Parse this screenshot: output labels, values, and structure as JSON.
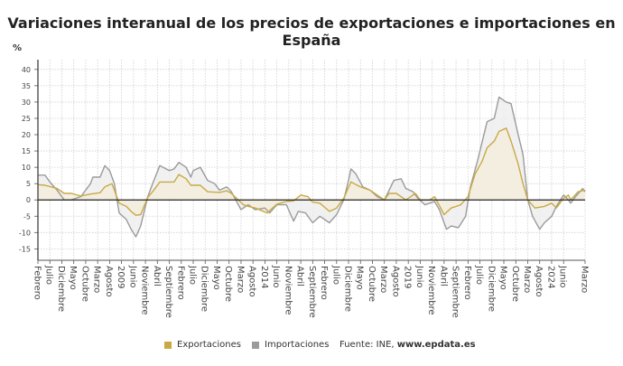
{
  "title": "Variaciones interanual de los precios de exportaciones e importaciones en España",
  "unit": "%",
  "legend": {
    "exports_label": "Exportaciones",
    "imports_label": "Importaciones",
    "source_prefix": "Fuente: INE, ",
    "source_site": "www.epdata.es"
  },
  "chart_data": {
    "type": "line",
    "title": "Variaciones interanual de los precios de exportaciones e importaciones en España",
    "ylabel": "%",
    "ylim": [
      -18.5,
      43
    ],
    "yticks": [
      40,
      35,
      30,
      25,
      20,
      15,
      10,
      5,
      0,
      -5,
      -10,
      -15
    ],
    "xrange": [
      "2006-02",
      "2025-03"
    ],
    "grid": true,
    "legend_position": "bottom",
    "xticks": [
      {
        "x": "2006-02",
        "label": "Febrero"
      },
      {
        "x": "2006-07",
        "label": "Julio"
      },
      {
        "x": "2006-12",
        "label": "Diciembre"
      },
      {
        "x": "2007-05",
        "label": "Mayo"
      },
      {
        "x": "2007-10",
        "label": "Octubre"
      },
      {
        "x": "2008-03",
        "label": "Marzo"
      },
      {
        "x": "2008-08",
        "label": "Agosto"
      },
      {
        "x": "2009-01",
        "label": "2009"
      },
      {
        "x": "2009-06",
        "label": "Junio"
      },
      {
        "x": "2009-11",
        "label": "Noviembre"
      },
      {
        "x": "2010-04",
        "label": "Abril"
      },
      {
        "x": "2010-09",
        "label": "Septiembre"
      },
      {
        "x": "2011-02",
        "label": "Febrero"
      },
      {
        "x": "2011-07",
        "label": "Julio"
      },
      {
        "x": "2011-12",
        "label": "Diciembre"
      },
      {
        "x": "2012-05",
        "label": "Mayo"
      },
      {
        "x": "2012-10",
        "label": "Octubre"
      },
      {
        "x": "2013-03",
        "label": "Marzo"
      },
      {
        "x": "2013-08",
        "label": "Agosto"
      },
      {
        "x": "2014-01",
        "label": "2014"
      },
      {
        "x": "2014-06",
        "label": "Junio"
      },
      {
        "x": "2014-11",
        "label": "Noviembre"
      },
      {
        "x": "2015-04",
        "label": "Abril"
      },
      {
        "x": "2015-09",
        "label": "Septiembre"
      },
      {
        "x": "2016-02",
        "label": "Febrero"
      },
      {
        "x": "2016-07",
        "label": "Julio"
      },
      {
        "x": "2016-12",
        "label": "Diciembre"
      },
      {
        "x": "2017-05",
        "label": "Mayo"
      },
      {
        "x": "2017-10",
        "label": "Octubre"
      },
      {
        "x": "2018-03",
        "label": "Marzo"
      },
      {
        "x": "2018-08",
        "label": "Agosto"
      },
      {
        "x": "2019-01",
        "label": "2019"
      },
      {
        "x": "2019-06",
        "label": "Junio"
      },
      {
        "x": "2019-11",
        "label": "Noviembre"
      },
      {
        "x": "2020-04",
        "label": "Abril"
      },
      {
        "x": "2020-09",
        "label": "Septiembre"
      },
      {
        "x": "2021-02",
        "label": "Febrero"
      },
      {
        "x": "2021-07",
        "label": "Julio"
      },
      {
        "x": "2021-12",
        "label": "Diciembre"
      },
      {
        "x": "2022-05",
        "label": "Mayo"
      },
      {
        "x": "2022-10",
        "label": "Octubre"
      },
      {
        "x": "2023-03",
        "label": "Marzo"
      },
      {
        "x": "2023-08",
        "label": "Agosto"
      },
      {
        "x": "2024-01",
        "label": "2024"
      },
      {
        "x": "2024-06",
        "label": "Junio"
      },
      {
        "x": "2025-03",
        "label": "Marzo"
      }
    ],
    "series": [
      {
        "name": "Importaciones",
        "color": "#9b9b9b",
        "fill": "#ededed",
        "points": [
          [
            "2006-02",
            7.6
          ],
          [
            "2006-05",
            7.6
          ],
          [
            "2006-07",
            5.5
          ],
          [
            "2006-10",
            3
          ],
          [
            "2007-01",
            0
          ],
          [
            "2007-04",
            0
          ],
          [
            "2007-08",
            1
          ],
          [
            "2007-12",
            5
          ],
          [
            "2008-01",
            7
          ],
          [
            "2008-04",
            7
          ],
          [
            "2008-06",
            10.5
          ],
          [
            "2008-08",
            9
          ],
          [
            "2008-10",
            5
          ],
          [
            "2008-12",
            -4
          ],
          [
            "2009-03",
            -6
          ],
          [
            "2009-05",
            -9
          ],
          [
            "2009-07",
            -11.3
          ],
          [
            "2009-09",
            -8
          ],
          [
            "2009-12",
            1
          ],
          [
            "2010-02",
            5
          ],
          [
            "2010-05",
            10.5
          ],
          [
            "2010-09",
            9
          ],
          [
            "2010-11",
            9.5
          ],
          [
            "2011-01",
            11.5
          ],
          [
            "2011-04",
            10
          ],
          [
            "2011-06",
            7
          ],
          [
            "2011-07",
            9
          ],
          [
            "2011-10",
            10
          ],
          [
            "2012-01",
            6
          ],
          [
            "2012-04",
            5
          ],
          [
            "2012-06",
            3
          ],
          [
            "2012-09",
            4
          ],
          [
            "2012-11",
            2.5
          ],
          [
            "2013-03",
            -3
          ],
          [
            "2013-06",
            -1.5
          ],
          [
            "2013-09",
            -3
          ],
          [
            "2014-01",
            -2.5
          ],
          [
            "2014-03",
            -4
          ],
          [
            "2014-06",
            -1.5
          ],
          [
            "2014-10",
            -1.5
          ],
          [
            "2015-01",
            -6.5
          ],
          [
            "2015-03",
            -3.5
          ],
          [
            "2015-06",
            -4
          ],
          [
            "2015-09",
            -7
          ],
          [
            "2015-12",
            -5
          ],
          [
            "2016-04",
            -7
          ],
          [
            "2016-07",
            -4.5
          ],
          [
            "2016-10",
            0
          ],
          [
            "2016-12",
            6
          ],
          [
            "2017-01",
            9.5
          ],
          [
            "2017-03",
            8
          ],
          [
            "2017-06",
            4
          ],
          [
            "2017-09",
            3
          ],
          [
            "2017-12",
            1
          ],
          [
            "2018-03",
            0
          ],
          [
            "2018-05",
            3
          ],
          [
            "2018-07",
            6
          ],
          [
            "2018-10",
            6.5
          ],
          [
            "2018-12",
            3.5
          ],
          [
            "2019-03",
            2.5
          ],
          [
            "2019-05",
            0.5
          ],
          [
            "2019-08",
            -1.5
          ],
          [
            "2019-10",
            -1
          ],
          [
            "2019-12",
            -0.5
          ],
          [
            "2020-02",
            -3
          ],
          [
            "2020-05",
            -9
          ],
          [
            "2020-07",
            -8
          ],
          [
            "2020-10",
            -8.5
          ],
          [
            "2021-01",
            -5
          ],
          [
            "2021-03",
            4
          ],
          [
            "2021-06",
            12
          ],
          [
            "2021-10",
            24
          ],
          [
            "2022-01",
            25
          ],
          [
            "2022-03",
            31.5
          ],
          [
            "2022-06",
            30
          ],
          [
            "2022-08",
            29.5
          ],
          [
            "2022-11",
            20
          ],
          [
            "2023-01",
            14
          ],
          [
            "2023-03",
            0
          ],
          [
            "2023-05",
            -5
          ],
          [
            "2023-08",
            -9
          ],
          [
            "2023-10",
            -7
          ],
          [
            "2024-01",
            -5
          ],
          [
            "2024-03",
            -2
          ],
          [
            "2024-06",
            1.5
          ],
          [
            "2024-08",
            0
          ],
          [
            "2024-09",
            -1
          ],
          [
            "2024-11",
            1
          ],
          [
            "2025-02",
            3.5
          ],
          [
            "2025-03",
            2.5
          ]
        ]
      },
      {
        "name": "Exportaciones",
        "color": "#c8aa45",
        "fill": "#f5eedc",
        "points": [
          [
            "2006-02",
            4.7
          ],
          [
            "2006-05",
            4.5
          ],
          [
            "2006-10",
            3.5
          ],
          [
            "2007-01",
            2
          ],
          [
            "2007-04",
            2
          ],
          [
            "2007-08",
            1.2
          ],
          [
            "2007-12",
            1.8
          ],
          [
            "2008-04",
            2.2
          ],
          [
            "2008-06",
            4
          ],
          [
            "2008-09",
            5
          ],
          [
            "2008-12",
            -1
          ],
          [
            "2009-03",
            -2
          ],
          [
            "2009-05",
            -3.5
          ],
          [
            "2009-07",
            -4.7
          ],
          [
            "2009-09",
            -4.5
          ],
          [
            "2009-12",
            0.8
          ],
          [
            "2010-02",
            2.5
          ],
          [
            "2010-05",
            5.5
          ],
          [
            "2010-09",
            5.5
          ],
          [
            "2010-11",
            5.5
          ],
          [
            "2011-01",
            7.8
          ],
          [
            "2011-04",
            6.5
          ],
          [
            "2011-06",
            4.5
          ],
          [
            "2011-10",
            4.5
          ],
          [
            "2012-01",
            2.5
          ],
          [
            "2012-06",
            2.3
          ],
          [
            "2012-09",
            2.8
          ],
          [
            "2012-11",
            2
          ],
          [
            "2013-04",
            -1.5
          ],
          [
            "2013-06",
            -2
          ],
          [
            "2013-09",
            -2.5
          ],
          [
            "2014-02",
            -4
          ],
          [
            "2014-06",
            -1.3
          ],
          [
            "2014-10",
            -0.5
          ],
          [
            "2015-01",
            -0.3
          ],
          [
            "2015-04",
            1.5
          ],
          [
            "2015-07",
            1
          ],
          [
            "2015-09",
            -0.7
          ],
          [
            "2015-12",
            -1
          ],
          [
            "2016-04",
            -3.5
          ],
          [
            "2016-07",
            -2.5
          ],
          [
            "2016-10",
            0.5
          ],
          [
            "2017-01",
            5.5
          ],
          [
            "2017-05",
            4
          ],
          [
            "2017-09",
            3
          ],
          [
            "2017-12",
            1.5
          ],
          [
            "2018-03",
            0
          ],
          [
            "2018-05",
            2
          ],
          [
            "2018-08",
            2
          ],
          [
            "2018-12",
            0
          ],
          [
            "2019-04",
            2
          ],
          [
            "2019-06",
            0
          ],
          [
            "2019-10",
            0
          ],
          [
            "2019-12",
            1
          ],
          [
            "2020-04",
            -4.5
          ],
          [
            "2020-07",
            -2.5
          ],
          [
            "2020-11",
            -1.5
          ],
          [
            "2021-02",
            1
          ],
          [
            "2021-05",
            8
          ],
          [
            "2021-08",
            12
          ],
          [
            "2021-10",
            16
          ],
          [
            "2022-01",
            18
          ],
          [
            "2022-03",
            21
          ],
          [
            "2022-06",
            22
          ],
          [
            "2022-08",
            18
          ],
          [
            "2022-11",
            11
          ],
          [
            "2023-01",
            5
          ],
          [
            "2023-03",
            0
          ],
          [
            "2023-06",
            -2.5
          ],
          [
            "2023-10",
            -2
          ],
          [
            "2024-01",
            -1
          ],
          [
            "2024-03",
            -2.5
          ],
          [
            "2024-06",
            0.5
          ],
          [
            "2024-08",
            1.5
          ],
          [
            "2024-09",
            0
          ],
          [
            "2024-12",
            2.5
          ],
          [
            "2025-03",
            3
          ]
        ]
      }
    ]
  }
}
